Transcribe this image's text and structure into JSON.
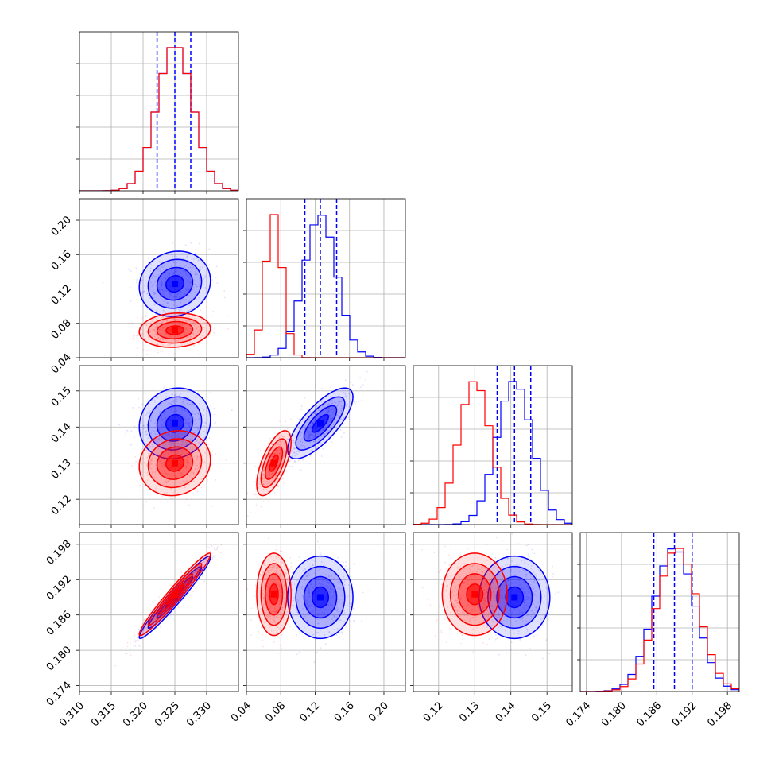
{
  "chart_data": {
    "type": "corner",
    "parameters": [
      {
        "lim": [
          0.31,
          0.335
        ],
        "ticks": [
          "0.310",
          "0.315",
          "0.320",
          "0.325",
          "0.330"
        ]
      },
      {
        "lim": [
          0.04,
          0.225
        ],
        "ticks": [
          "0.04",
          "0.08",
          "0.12",
          "0.16",
          "0.20"
        ]
      },
      {
        "lim": [
          0.113,
          0.157
        ],
        "ticks": [
          "0.12",
          "0.13",
          "0.14",
          "0.15"
        ]
      },
      {
        "lim": [
          0.173,
          0.2
        ],
        "ticks": [
          "0.174",
          "0.180",
          "0.186",
          "0.192",
          "0.198"
        ]
      }
    ],
    "grid": true,
    "series": [
      {
        "color": "#0000ff",
        "means": [
          0.325,
          0.126,
          0.141,
          0.189
        ],
        "sds": [
          0.0028,
          0.019,
          0.0049,
          0.0035
        ],
        "correlations": [
          [
            0,
            1,
            0.1
          ],
          [
            0,
            2,
            0.1
          ],
          [
            0,
            3,
            0.97
          ],
          [
            1,
            2,
            0.75
          ],
          [
            1,
            3,
            0.0
          ],
          [
            2,
            3,
            0.0
          ]
        ],
        "quantiles": [
          [
            0.3222,
            0.325,
            0.3275
          ],
          [
            0.108,
            0.126,
            0.145
          ],
          [
            0.1362,
            0.141,
            0.1455
          ],
          [
            0.1855,
            0.189,
            0.192
          ]
        ],
        "hist_peaks": [
          0.325,
          0.124,
          0.142,
          0.19
        ]
      },
      {
        "color": "#ff0000",
        "means": [
          0.325,
          0.072,
          0.13,
          0.1895
        ],
        "sds": [
          0.0028,
          0.01,
          0.0045,
          0.0035
        ],
        "correlations": [
          [
            0,
            1,
            0.1
          ],
          [
            0,
            2,
            0.1
          ],
          [
            0,
            3,
            0.97
          ],
          [
            1,
            2,
            0.65
          ],
          [
            1,
            3,
            0.0
          ],
          [
            2,
            3,
            0.0
          ]
        ],
        "quantiles": [],
        "hist_peaks": [
          0.325,
          0.072,
          0.13,
          0.19
        ]
      }
    ]
  }
}
